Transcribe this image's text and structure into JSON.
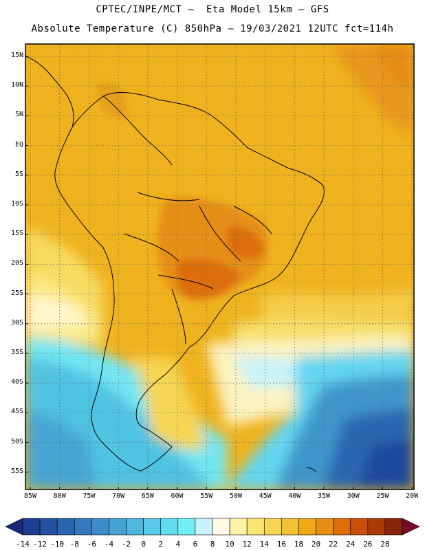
{
  "header": {
    "line1": "CPTEC/INPE/MCT –  Eta Model 15km – GFS",
    "line2": "Absolute Temperature (C) 850hPa – 19/03/2021 12UTC fct=114h"
  },
  "axes": {
    "lat_labels": [
      "15N",
      "10N",
      "5N",
      "EQ",
      "5S",
      "10S",
      "15S",
      "20S",
      "25S",
      "30S",
      "35S",
      "40S",
      "45S",
      "50S",
      "55S"
    ],
    "lon_labels": [
      "85W",
      "80W",
      "75W",
      "70W",
      "65W",
      "60W",
      "55W",
      "50W",
      "45W",
      "40W",
      "35W",
      "30W",
      "25W",
      "20W"
    ]
  },
  "colorbar": {
    "labels": [
      "-14",
      "-12",
      "-10",
      "-8",
      "-6",
      "-4",
      "-2",
      "0",
      "2",
      "4",
      "6",
      "8",
      "10",
      "12",
      "14",
      "16",
      "18",
      "20",
      "22",
      "24",
      "26",
      "28"
    ],
    "colors": [
      "#1d3d8f",
      "#2350a0",
      "#2a66b0",
      "#3479bd",
      "#3d8cc7",
      "#46a2d2",
      "#4fb6de",
      "#58c9e8",
      "#63dcef",
      "#72eef6",
      "#c9f2fb",
      "#fffbe6",
      "#fff4a6",
      "#fbe673",
      "#f6d552",
      "#f2c034",
      "#eeaa1a",
      "#e68f14",
      "#dd6e0a",
      "#c8500a",
      "#a83a08",
      "#85250a"
    ],
    "low_color": "#1a2a78",
    "high_color": "#7a0a2a"
  }
}
